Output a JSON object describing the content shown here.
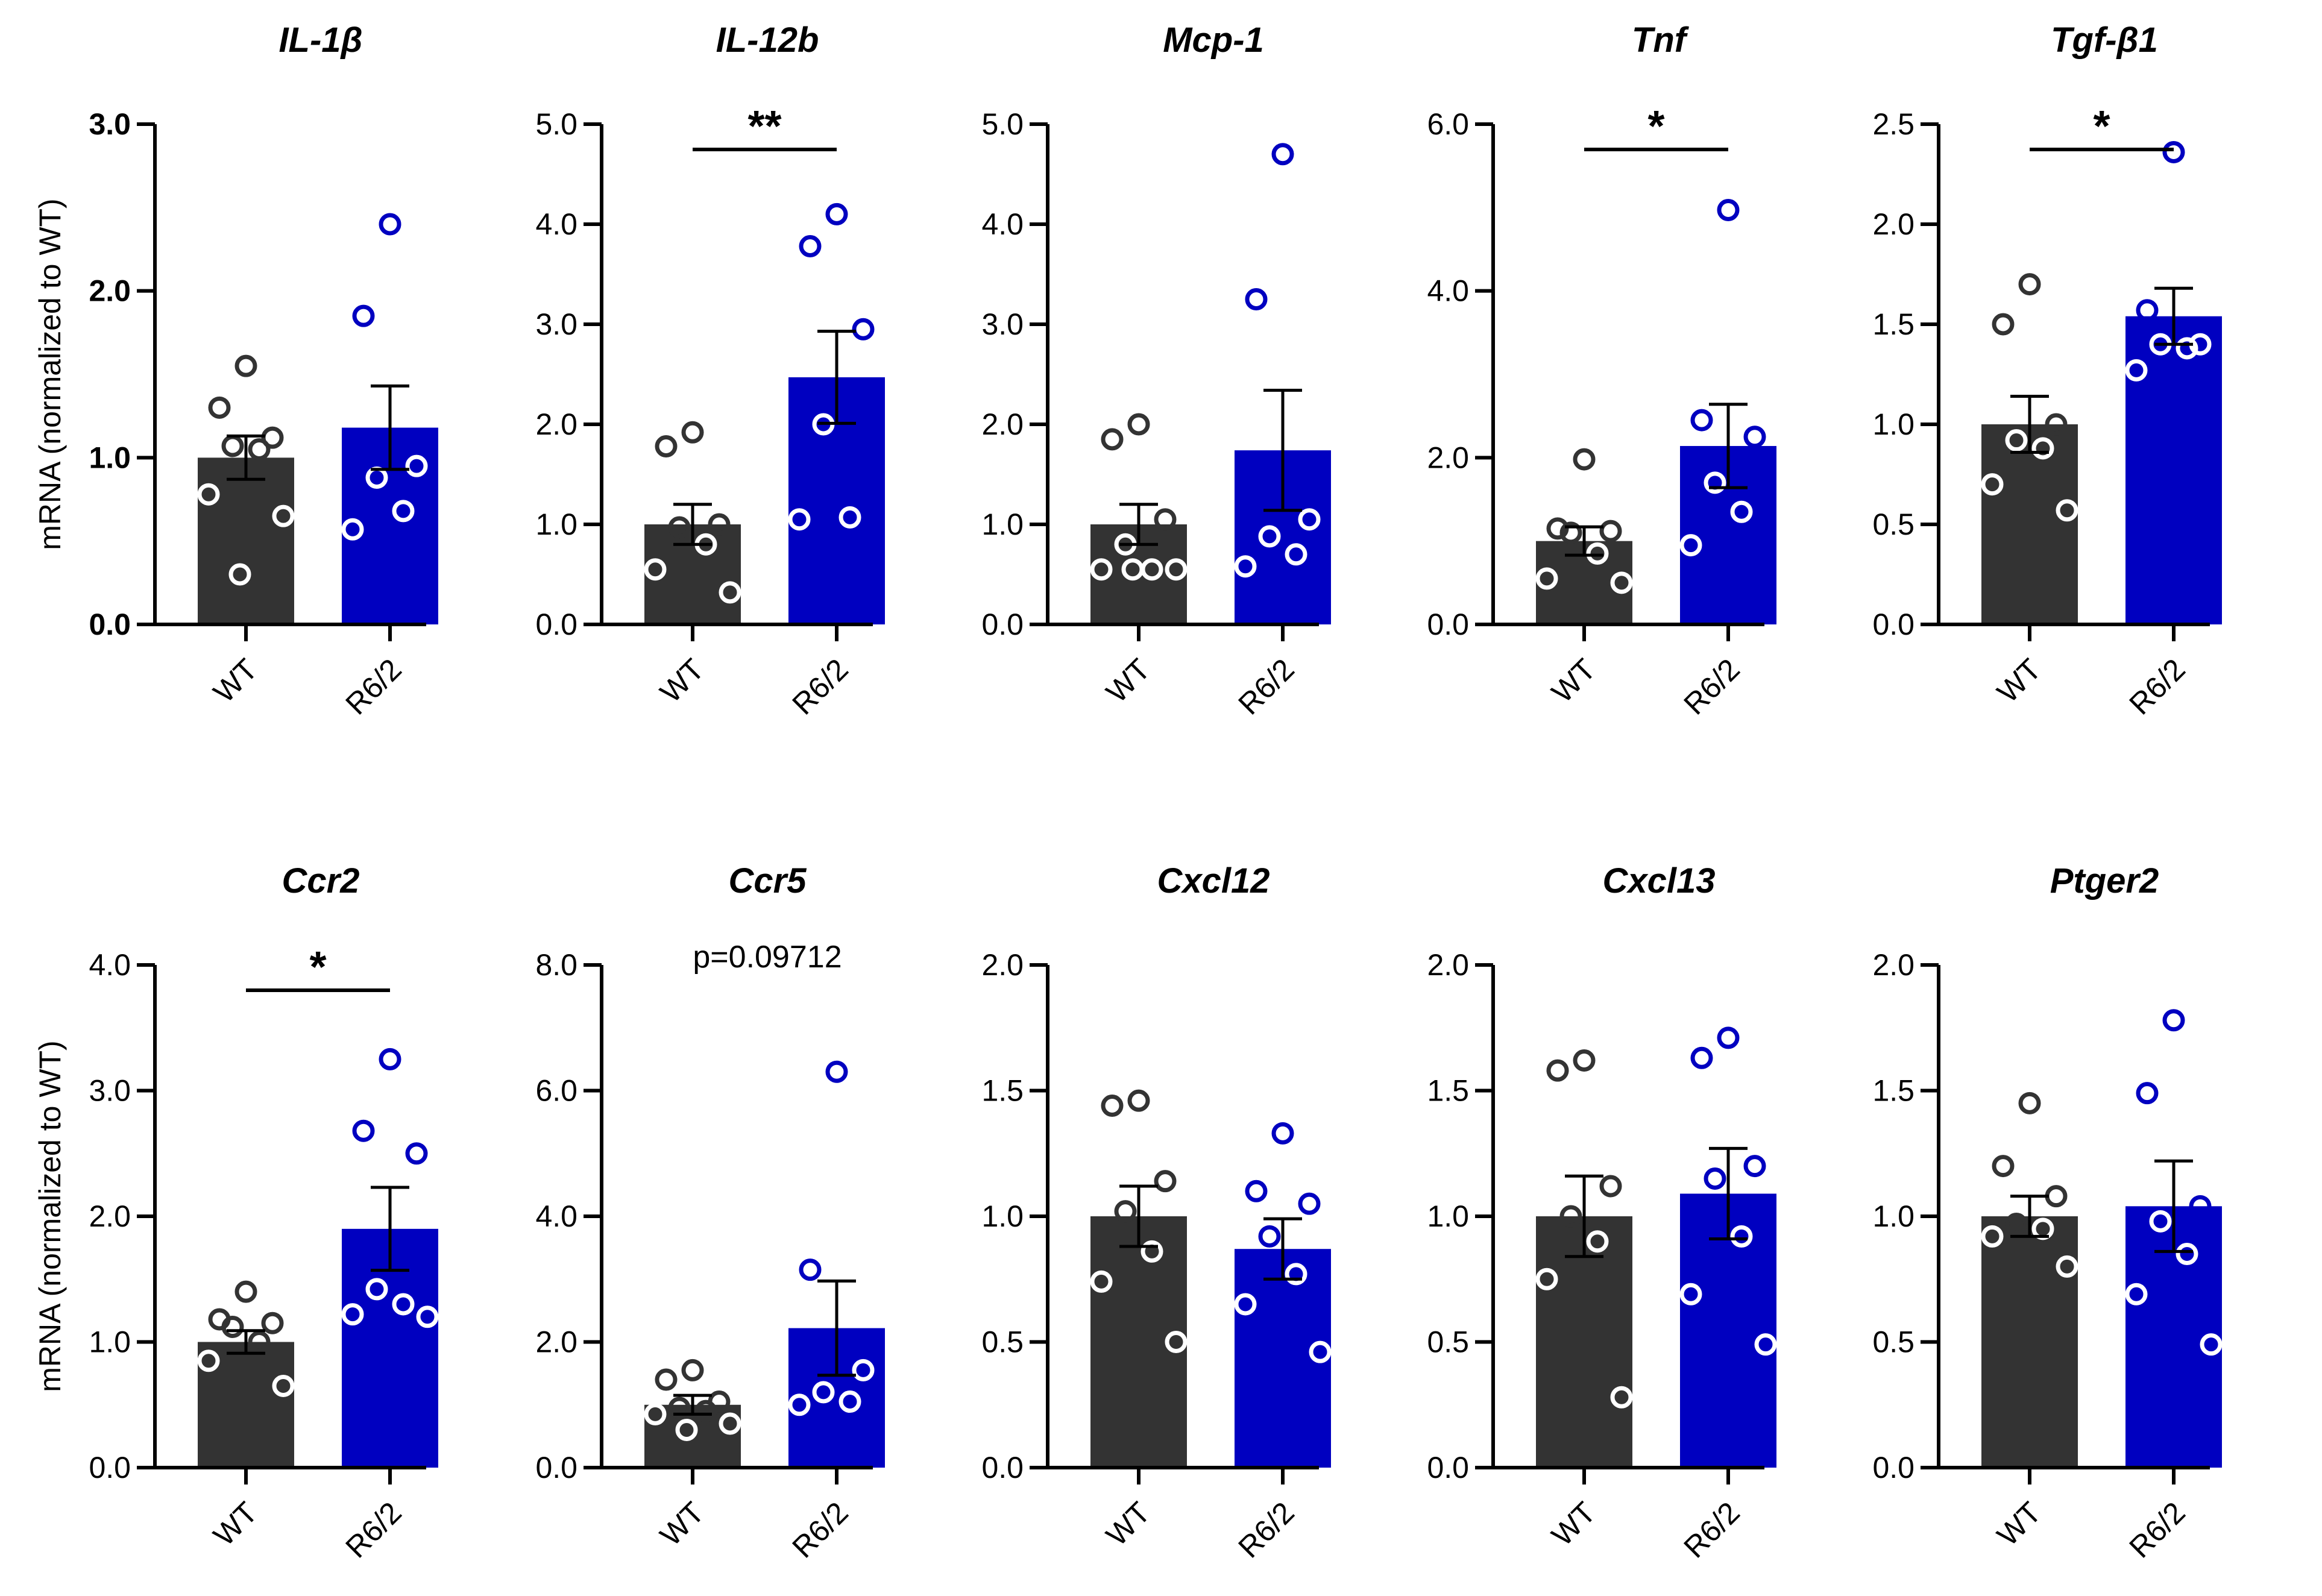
{
  "chart_data": [
    {
      "type": "bar",
      "title": "IL-1β",
      "ylabel": "mRNA (normalized to WT)",
      "ylim": [
        0,
        3
      ],
      "yticks": [
        "0.0",
        "1.0",
        "2.0",
        "3.0"
      ],
      "categories": [
        "WT",
        "R6/2"
      ],
      "series": [
        {
          "name": "WT",
          "color": "#333333",
          "mean": 1.0,
          "sem": 0.13,
          "points": [
            1.55,
            1.3,
            1.12,
            1.07,
            1.05,
            0.78,
            0.65,
            0.3
          ]
        },
        {
          "name": "R6/2",
          "color": "#0000C0",
          "mean": 1.18,
          "sem": 0.25,
          "points": [
            2.4,
            1.85,
            0.95,
            0.88,
            0.68,
            0.57
          ]
        }
      ],
      "significance": null,
      "pvalue": null
    },
    {
      "type": "bar",
      "title": "IL-12b",
      "ylim": [
        0,
        5
      ],
      "yticks": [
        "0.0",
        "1.0",
        "2.0",
        "3.0",
        "4.0",
        "5.0"
      ],
      "categories": [
        "WT",
        "R6/2"
      ],
      "series": [
        {
          "name": "WT",
          "color": "#333333",
          "mean": 1.0,
          "sem": 0.2,
          "points": [
            1.92,
            1.78,
            1.0,
            0.97,
            0.8,
            0.55,
            0.32
          ]
        },
        {
          "name": "R6/2",
          "color": "#0000C0",
          "mean": 2.47,
          "sem": 0.46,
          "points": [
            4.1,
            3.78,
            2.95,
            2.0,
            1.07,
            1.05
          ]
        }
      ],
      "significance": "**",
      "pvalue": null
    },
    {
      "type": "bar",
      "title": "Mcp-1",
      "ylim": [
        0,
        5
      ],
      "yticks": [
        "0.0",
        "1.0",
        "2.0",
        "3.0",
        "4.0",
        "5.0"
      ],
      "categories": [
        "WT",
        "R6/2"
      ],
      "series": [
        {
          "name": "WT",
          "color": "#333333",
          "mean": 1.0,
          "sem": 0.2,
          "points": [
            2.0,
            1.85,
            1.05,
            0.8,
            0.55,
            0.55,
            0.55,
            0.55
          ]
        },
        {
          "name": "R6/2",
          "color": "#0000C0",
          "mean": 1.74,
          "sem": 0.6,
          "points": [
            4.7,
            3.25,
            1.05,
            0.88,
            0.7,
            0.58
          ]
        }
      ],
      "significance": null,
      "pvalue": null
    },
    {
      "type": "bar",
      "title": "Tnf",
      "ylim": [
        0,
        6
      ],
      "yticks": [
        "0.0",
        "2.0",
        "4.0",
        "6.0"
      ],
      "categories": [
        "WT",
        "R6/2"
      ],
      "series": [
        {
          "name": "WT",
          "color": "#333333",
          "mean": 1.0,
          "sem": 0.17,
          "points": [
            1.98,
            1.15,
            1.12,
            1.1,
            0.85,
            0.55,
            0.5
          ]
        },
        {
          "name": "R6/2",
          "color": "#0000C0",
          "mean": 2.14,
          "sem": 0.5,
          "points": [
            4.97,
            2.45,
            2.25,
            1.7,
            1.35,
            0.95
          ]
        }
      ],
      "significance": "*",
      "pvalue": null
    },
    {
      "type": "bar",
      "title": "Tgf-β1",
      "ylim": [
        0,
        2.5
      ],
      "yticks": [
        "0.0",
        "0.5",
        "1.0",
        "1.5",
        "2.0",
        "2.5"
      ],
      "categories": [
        "WT",
        "R6/2"
      ],
      "series": [
        {
          "name": "WT",
          "color": "#333333",
          "mean": 1.0,
          "sem": 0.14,
          "points": [
            1.7,
            1.5,
            1.0,
            0.92,
            0.88,
            0.7,
            0.57
          ]
        },
        {
          "name": "R6/2",
          "color": "#0000C0",
          "mean": 1.54,
          "sem": 0.14,
          "points": [
            2.36,
            1.57,
            1.4,
            1.4,
            1.38,
            1.27
          ]
        }
      ],
      "significance": "*",
      "pvalue": null
    },
    {
      "type": "bar",
      "title": "Ccr2",
      "ylabel": "mRNA (normalized to WT)",
      "ylim": [
        0,
        4
      ],
      "yticks": [
        "0.0",
        "1.0",
        "2.0",
        "3.0",
        "4.0"
      ],
      "categories": [
        "WT",
        "R6/2"
      ],
      "series": [
        {
          "name": "WT",
          "color": "#333333",
          "mean": 1.0,
          "sem": 0.09,
          "points": [
            1.4,
            1.18,
            1.15,
            1.12,
            1.0,
            0.85,
            0.65
          ]
        },
        {
          "name": "R6/2",
          "color": "#0000C0",
          "mean": 1.9,
          "sem": 0.33,
          "points": [
            3.25,
            2.68,
            2.5,
            1.42,
            1.3,
            1.22,
            1.2
          ]
        }
      ],
      "significance": "*",
      "pvalue": null
    },
    {
      "type": "bar",
      "title": "Ccr5",
      "ylim": [
        0,
        8
      ],
      "yticks": [
        "0.0",
        "2.0",
        "4.0",
        "6.0",
        "8.0"
      ],
      "categories": [
        "WT",
        "R6/2"
      ],
      "series": [
        {
          "name": "WT",
          "color": "#333333",
          "mean": 1.0,
          "sem": 0.15,
          "points": [
            1.55,
            1.4,
            1.05,
            0.95,
            0.9,
            0.85,
            0.7,
            0.6
          ]
        },
        {
          "name": "R6/2",
          "color": "#0000C0",
          "mean": 2.22,
          "sem": 0.75,
          "points": [
            6.3,
            3.15,
            1.55,
            1.2,
            1.05,
            1.0
          ]
        }
      ],
      "significance": null,
      "pvalue": "p=0.09712"
    },
    {
      "type": "bar",
      "title": "Cxcl12",
      "ylim": [
        0,
        2
      ],
      "yticks": [
        "0.0",
        "0.5",
        "1.0",
        "1.5",
        "2.0"
      ],
      "categories": [
        "WT",
        "R6/2"
      ],
      "series": [
        {
          "name": "WT",
          "color": "#333333",
          "mean": 1.0,
          "sem": 0.12,
          "points": [
            1.46,
            1.44,
            1.14,
            1.02,
            0.86,
            0.74,
            0.5
          ]
        },
        {
          "name": "R6/2",
          "color": "#0000C0",
          "mean": 0.87,
          "sem": 0.12,
          "points": [
            1.33,
            1.1,
            1.05,
            0.92,
            0.77,
            0.65,
            0.46
          ]
        }
      ],
      "significance": null,
      "pvalue": null
    },
    {
      "type": "bar",
      "title": "Cxcl13",
      "ylim": [
        0,
        2
      ],
      "yticks": [
        "0.0",
        "0.5",
        "1.0",
        "1.5",
        "2.0"
      ],
      "categories": [
        "WT",
        "R6/2"
      ],
      "series": [
        {
          "name": "WT",
          "color": "#333333",
          "mean": 1.0,
          "sem": 0.16,
          "points": [
            1.62,
            1.58,
            1.12,
            1.0,
            0.9,
            0.75,
            0.28
          ]
        },
        {
          "name": "R6/2",
          "color": "#0000C0",
          "mean": 1.09,
          "sem": 0.18,
          "points": [
            1.71,
            1.63,
            1.2,
            1.15,
            0.92,
            0.69,
            0.49
          ]
        }
      ],
      "significance": null,
      "pvalue": null
    },
    {
      "type": "bar",
      "title": "Ptger2",
      "ylim": [
        0,
        2
      ],
      "yticks": [
        "0.0",
        "0.5",
        "1.0",
        "1.5",
        "2.0"
      ],
      "categories": [
        "WT",
        "R6/2"
      ],
      "series": [
        {
          "name": "WT",
          "color": "#333333",
          "mean": 1.0,
          "sem": 0.08,
          "points": [
            1.45,
            1.2,
            1.08,
            0.97,
            0.95,
            0.92,
            0.8
          ]
        },
        {
          "name": "R6/2",
          "color": "#0000C0",
          "mean": 1.04,
          "sem": 0.18,
          "points": [
            1.78,
            1.49,
            1.04,
            0.98,
            0.85,
            0.69,
            0.49
          ]
        }
      ],
      "significance": null,
      "pvalue": null
    }
  ]
}
